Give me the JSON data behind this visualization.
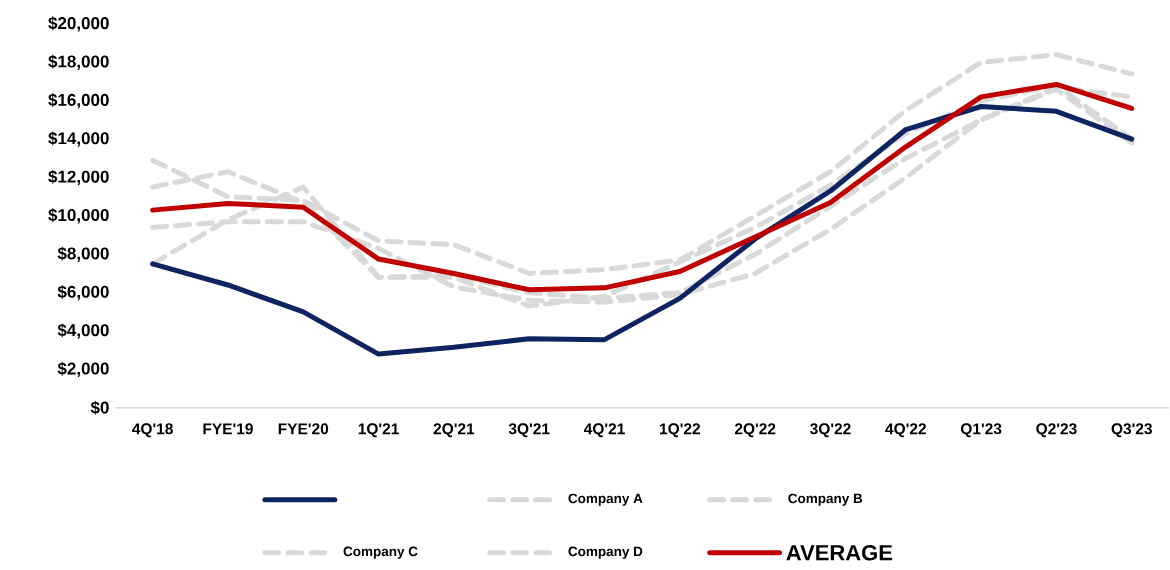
{
  "chart_data": {
    "type": "line",
    "categories": [
      "4Q'18",
      "FYE'19",
      "FYE'20",
      "1Q'21",
      "2Q'21",
      "3Q'21",
      "4Q'21",
      "1Q'22",
      "2Q'22",
      "3Q'22",
      "4Q'22",
      "Q1'23",
      "Q2'23",
      "Q3'23"
    ],
    "series": [
      {
        "color": "#0d2461",
        "line_style": "solid",
        "values": [
          7500,
          6400,
          5000,
          2800,
          3150,
          3600,
          3550,
          5700,
          8800,
          11300,
          14500,
          15700,
          15450,
          14000
        ]
      },
      {
        "name": "Company A",
        "color": "#d9d9d9",
        "line_style": "dashed",
        "values": [
          12900,
          11000,
          10800,
          8700,
          8500,
          7000,
          7200,
          7700,
          10000,
          12300,
          15500,
          18000,
          18400,
          17400
        ]
      },
      {
        "name": "Company B",
        "color": "#d9d9d9",
        "line_style": "dashed",
        "values": [
          11500,
          12300,
          10700,
          6800,
          6800,
          5300,
          5800,
          7600,
          9400,
          11600,
          14300,
          16000,
          16800,
          14000
        ]
      },
      {
        "name": "Company C",
        "color": "#d9d9d9",
        "line_style": "dashed",
        "values": [
          9400,
          9700,
          9700,
          8300,
          6300,
          5600,
          5500,
          5900,
          7000,
          9300,
          12000,
          15000,
          16700,
          16200
        ]
      },
      {
        "name": "Company D",
        "color": "#d9d9d9",
        "line_style": "dashed",
        "values": [
          7500,
          9800,
          11500,
          6800,
          6900,
          6000,
          5700,
          6000,
          8000,
          10500,
          13000,
          15000,
          16600,
          13800
        ]
      },
      {
        "name": "AVERAGE",
        "color": "#c00000",
        "line_style": "solid",
        "values": [
          10300,
          10650,
          10450,
          7750,
          7000,
          6150,
          6250,
          7100,
          8900,
          10700,
          13600,
          16200,
          16850,
          15600
        ]
      }
    ],
    "ylim": [
      0,
      20000
    ],
    "yticks": [
      {
        "value": 0,
        "label": "$0"
      },
      {
        "value": 2000,
        "label": "$2,000"
      },
      {
        "value": 4000,
        "label": "$4,000"
      },
      {
        "value": 6000,
        "label": "$6,000"
      },
      {
        "value": 8000,
        "label": "$8,000"
      },
      {
        "value": 10000,
        "label": "$10,000"
      },
      {
        "value": 12000,
        "label": "$12,000"
      },
      {
        "value": 14000,
        "label": "$14,000"
      },
      {
        "value": 16000,
        "label": "$16,000"
      },
      {
        "value": 18000,
        "label": "$18,000"
      },
      {
        "value": 20000,
        "label": "$20,000"
      }
    ],
    "grid": false,
    "legend": "bottom"
  }
}
